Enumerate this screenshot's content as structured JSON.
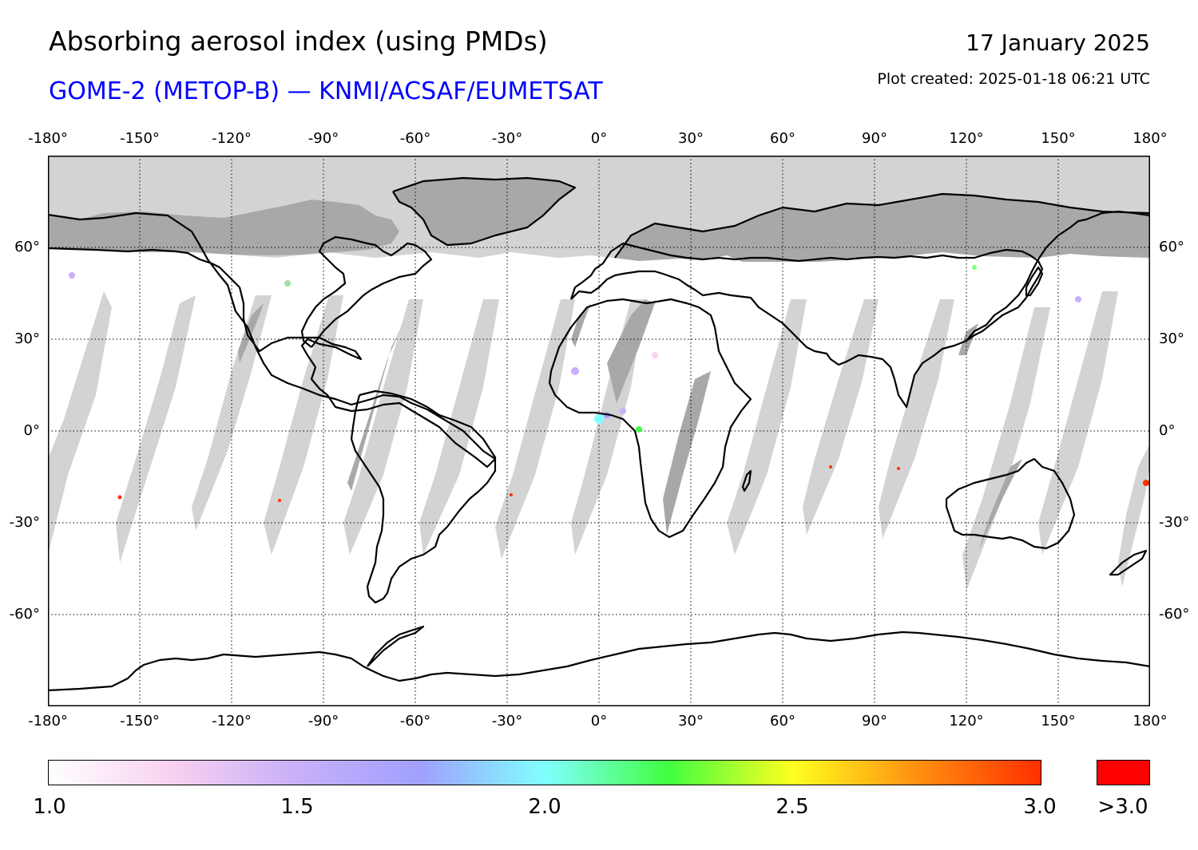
{
  "header": {
    "title": "Absorbing aerosol index (using PMDs)",
    "subtitle": "GOME-2 (METOP-B) — KNMI/ACSAF/EUMETSAT",
    "date": "17 January 2025",
    "created": "Plot created: 2025-01-18 06:21 UTC"
  },
  "axes": {
    "lon_labels": [
      "-180°",
      "-150°",
      "-120°",
      "-90°",
      "-60°",
      "-30°",
      "0°",
      "30°",
      "60°",
      "90°",
      "120°",
      "150°",
      "180°"
    ],
    "lat_labels": [
      "60°",
      "30°",
      "0°",
      "-30°",
      "-60°"
    ]
  },
  "colorbar": {
    "tick_labels": [
      "1.0",
      "1.5",
      "2.0",
      "2.5",
      "3.0"
    ],
    "overflow_label": ">3.0",
    "gradient_colors": [
      "#ffffff",
      "#f8d0f0",
      "#c8b0f8",
      "#a0a0ff",
      "#80ffff",
      "#40ff40",
      "#ffff20",
      "#ff9010",
      "#ff3000"
    ],
    "overflow_color": "#ff0000"
  },
  "map_colors": {
    "no_data_polar": "#d3d3d3",
    "no_data_land_polar": "#a8a8a8",
    "gap_ocean": "#d3d3d3",
    "gap_land": "#a8a8a8",
    "coast": "#000000"
  }
}
